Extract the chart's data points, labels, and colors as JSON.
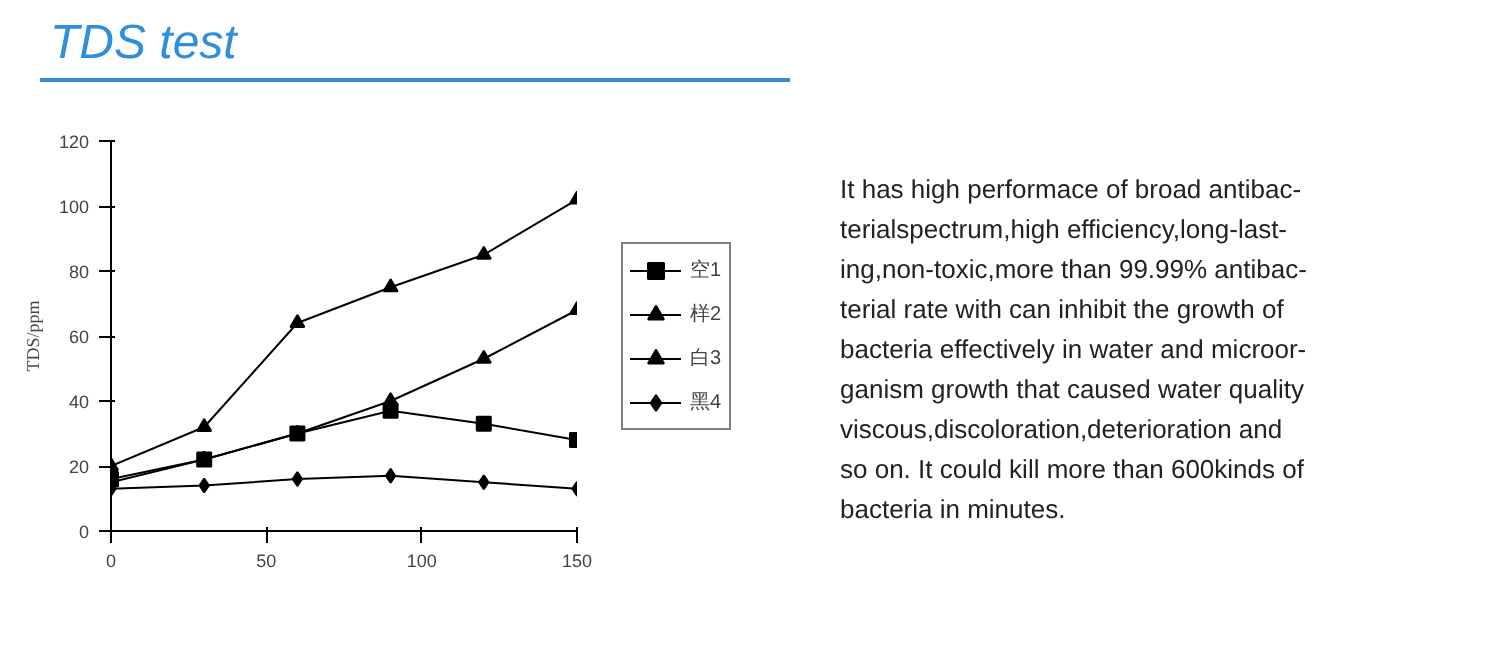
{
  "chart_data": {
    "type": "line",
    "title": "TDS test",
    "ylabel": "TDS/ppm",
    "x": [
      0,
      30,
      60,
      90,
      120,
      150
    ],
    "series": [
      {
        "name": "空1",
        "color": "#000000",
        "marker": "square",
        "values": [
          16,
          22,
          30,
          37,
          33,
          28
        ]
      },
      {
        "name": "样2",
        "color": "#000000",
        "marker": "triangle",
        "values": [
          15,
          22,
          30,
          40,
          53,
          68
        ]
      },
      {
        "name": "白3",
        "color": "#000000",
        "marker": "triangle",
        "values": [
          20,
          32,
          64,
          75,
          85,
          102
        ]
      },
      {
        "name": "黑4",
        "color": "#000000",
        "marker": "diamond",
        "values": [
          13,
          14,
          16,
          17,
          15,
          13
        ]
      }
    ],
    "xlim": [
      0,
      150
    ],
    "xticks": [
      0,
      50,
      100,
      150
    ],
    "ylim": [
      0,
      120
    ],
    "yticks": [
      0,
      20,
      40,
      60,
      80,
      100,
      120
    ],
    "grid": false,
    "legend": "right",
    "line_style": "solid",
    "annotations": [
      "It has high performace of broad antibac-\nterialspectrum,high efficiency,long-last-\ning,non-toxic,more than 99.99% antibac-\nterial rate with can inhibit the growth of\nbacteria effectively in water and microor-\nganism growth that caused water quality\nviscous,discoloration,deterioration and\nso on. It could kill more than 600kinds of\nbacteria in minutes."
    ]
  }
}
